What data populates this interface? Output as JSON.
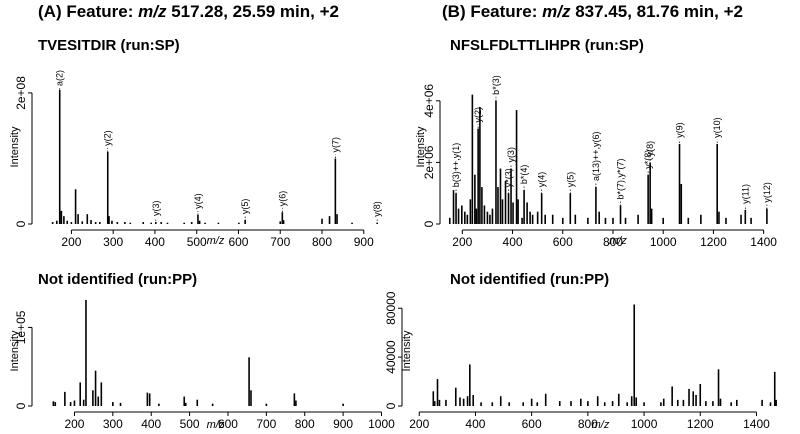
{
  "panels": {
    "A": {
      "title_prefix": "(A) Feature: ",
      "title_mz": "m/z",
      "title_rest": " 517.28, 25.59 min, +2"
    },
    "B": {
      "title_prefix": "(B) Feature: ",
      "title_mz": "m/z",
      "title_rest": " 837.45, 81.76 min, +2"
    }
  },
  "chart_data": [
    {
      "id": "A-SP",
      "type": "bar",
      "title": "TVESITDIR (run:SP)",
      "xlabel": "m/z",
      "ylabel": "Intensity",
      "xlim": [
        120,
        970
      ],
      "ylim": [
        0,
        235000000.0
      ],
      "xticks": [
        200,
        300,
        400,
        500,
        600,
        700,
        800,
        900
      ],
      "yticks": [
        {
          "value": 0,
          "label": "0"
        },
        {
          "value": 200000000.0,
          "label": "2e+08"
        }
      ],
      "peaks": [
        [
          155,
          3000000.0
        ],
        [
          165,
          5000000.0
        ],
        [
          172,
          205000000.0
        ],
        [
          176,
          20000000.0
        ],
        [
          182,
          12000000.0
        ],
        [
          190,
          5000000.0
        ],
        [
          200,
          3000000.0
        ],
        [
          210,
          53000000.0
        ],
        [
          216,
          15000000.0
        ],
        [
          226,
          4000000.0
        ],
        [
          238,
          15000000.0
        ],
        [
          247,
          6000000.0
        ],
        [
          258,
          3000000.0
        ],
        [
          268,
          3000000.0
        ],
        [
          287,
          110000000.0
        ],
        [
          290,
          12000000.0
        ],
        [
          297,
          5000000.0
        ],
        [
          310,
          3000000.0
        ],
        [
          328,
          3000000.0
        ],
        [
          341,
          2000000.0
        ],
        [
          372,
          3000000.0
        ],
        [
          391,
          2000000.0
        ],
        [
          402,
          3000000.0
        ],
        [
          415,
          3000000.0
        ],
        [
          430,
          2000000.0
        ],
        [
          470,
          2000000.0
        ],
        [
          488,
          3000000.0
        ],
        [
          503,
          14000000.0
        ],
        [
          507,
          5000000.0
        ],
        [
          520,
          2000000.0
        ],
        [
          552,
          2000000.0
        ],
        [
          601,
          2000000.0
        ],
        [
          616,
          6000000.0
        ],
        [
          700,
          4000000.0
        ],
        [
          705,
          18000000.0
        ],
        [
          708,
          6000000.0
        ],
        [
          800,
          8000000.0
        ],
        [
          818,
          12000000.0
        ],
        [
          832,
          100000000.0
        ],
        [
          836,
          15000000.0
        ],
        [
          872,
          2000000.0
        ],
        [
          932,
          2000000.0
        ]
      ],
      "annotations": [
        {
          "label": "a(2)",
          "x": 172
        },
        {
          "label": "y(2)",
          "x": 287
        },
        {
          "label": "y(3)",
          "x": 402
        },
        {
          "label": "y(4)",
          "x": 503
        },
        {
          "label": "y(5)",
          "x": 616
        },
        {
          "label": "y(6)",
          "x": 705
        },
        {
          "label": "y(7)",
          "x": 832
        },
        {
          "label": "y(8)",
          "x": 932
        }
      ]
    },
    {
      "id": "B-SP",
      "type": "bar",
      "title": "NFSLFDLTTLIHPR (run:SP)",
      "xlabel": "m/z",
      "ylabel": "Intensity",
      "xlim": [
        135,
        1505
      ],
      "ylim": [
        0,
        5000000.0
      ],
      "xticks": [
        200,
        400,
        600,
        800,
        1000,
        1200,
        1400
      ],
      "yticks": [
        {
          "value": 0,
          "label": "0"
        },
        {
          "value": 2000000.0,
          "label": "2e+06"
        },
        {
          "value": 4000000.0,
          "label": "4e+06"
        }
      ],
      "peaks": [
        [
          150,
          200000.0
        ],
        [
          165,
          1100000.0
        ],
        [
          175,
          1000000.0
        ],
        [
          185,
          500000.0
        ],
        [
          198,
          600000.0
        ],
        [
          210,
          400000.0
        ],
        [
          220,
          300000.0
        ],
        [
          232,
          800000.0
        ],
        [
          240,
          4200000.0
        ],
        [
          250,
          1600000.0
        ],
        [
          256,
          500000.0
        ],
        [
          263,
          3100000.0
        ],
        [
          270,
          3800000.0
        ],
        [
          278,
          1200000.0
        ],
        [
          288,
          600000.0
        ],
        [
          300,
          400000.0
        ],
        [
          310,
          300000.0
        ],
        [
          320,
          500000.0
        ],
        [
          334,
          4000000.0
        ],
        [
          342,
          1200000.0
        ],
        [
          352,
          1800000.0
        ],
        [
          360,
          800000.0
        ],
        [
          372,
          1400000.0
        ],
        [
          384,
          1000000.0
        ],
        [
          394,
          1800000.0
        ],
        [
          402,
          700000.0
        ],
        [
          416,
          3700000.0
        ],
        [
          422,
          800000.0
        ],
        [
          438,
          200000.0
        ],
        [
          446,
          1100000.0
        ],
        [
          458,
          700000.0
        ],
        [
          470,
          400000.0
        ],
        [
          480,
          300000.0
        ],
        [
          500,
          400000.0
        ],
        [
          516,
          1000000.0
        ],
        [
          530,
          300000.0
        ],
        [
          560,
          300000.0
        ],
        [
          600,
          200000.0
        ],
        [
          630,
          1000000.0
        ],
        [
          650,
          300000.0
        ],
        [
          700,
          200000.0
        ],
        [
          732,
          1200000.0
        ],
        [
          745,
          400000.0
        ],
        [
          770,
          200000.0
        ],
        [
          800,
          200000.0
        ],
        [
          830,
          600000.0
        ],
        [
          850,
          200000.0
        ],
        [
          900,
          300000.0
        ],
        [
          940,
          1600000.0
        ],
        [
          948,
          2000000.0
        ],
        [
          954,
          500000.0
        ],
        [
          1000,
          200000.0
        ],
        [
          1065,
          2600000.0
        ],
        [
          1072,
          1300000.0
        ],
        [
          1100,
          200000.0
        ],
        [
          1150,
          300000.0
        ],
        [
          1215,
          2600000.0
        ],
        [
          1222,
          400000.0
        ],
        [
          1250,
          200000.0
        ],
        [
          1310,
          300000.0
        ],
        [
          1327,
          460000.0
        ],
        [
          1350,
          200000.0
        ],
        [
          1413,
          500000.0
        ]
      ],
      "annotations": [
        {
          "label": "b(3)++,y(1)",
          "x": 175
        },
        {
          "label": "y(2)",
          "x": 263
        },
        {
          "label": "b*(3)",
          "x": 334
        },
        {
          "label": "y*(3)",
          "x": 384
        },
        {
          "label": "y(3)",
          "x": 394
        },
        {
          "label": "b*(4)",
          "x": 446
        },
        {
          "label": "y(4)",
          "x": 516
        },
        {
          "label": "y(5)",
          "x": 630
        },
        {
          "label": "a(13)++,y(6)",
          "x": 732
        },
        {
          "label": "b*(7),y*(7)",
          "x": 830
        },
        {
          "label": "y*(8)",
          "x": 940
        },
        {
          "label": "y(8)",
          "x": 948
        },
        {
          "label": "y(9)",
          "x": 1065
        },
        {
          "label": "y(10)",
          "x": 1215
        },
        {
          "label": "y(11)",
          "x": 1327
        },
        {
          "label": "y(12)",
          "x": 1413
        }
      ]
    },
    {
      "id": "A-PP",
      "type": "bar",
      "title": "Not identified (run:PP)",
      "xlabel": "m/z",
      "ylabel": "Intensity",
      "xlim": [
        105,
        1030
      ],
      "ylim": [
        0,
        140000.0
      ],
      "xticks": [
        200,
        300,
        400,
        500,
        600,
        700,
        800,
        900,
        1000
      ],
      "yticks": [
        {
          "value": 0,
          "label": "0"
        },
        {
          "value": 100000.0,
          "label": "1e+05"
        }
      ],
      "peaks": [
        [
          145,
          6000.0
        ],
        [
          150,
          5000.0
        ],
        [
          175,
          18000.0
        ],
        [
          190,
          5000.0
        ],
        [
          200,
          7000.0
        ],
        [
          215,
          30000.0
        ],
        [
          224,
          8000.0
        ],
        [
          230,
          135000.0
        ],
        [
          248,
          20000.0
        ],
        [
          255,
          45000.0
        ],
        [
          262,
          12000.0
        ],
        [
          270,
          30000.0
        ],
        [
          300,
          5000.0
        ],
        [
          320,
          4000.0
        ],
        [
          390,
          17000.0
        ],
        [
          396,
          16000.0
        ],
        [
          420,
          3000.0
        ],
        [
          486,
          12000.0
        ],
        [
          490,
          4000.0
        ],
        [
          520,
          8000.0
        ],
        [
          560,
          3000.0
        ],
        [
          655,
          62000.0
        ],
        [
          660,
          20000.0
        ],
        [
          700,
          3000.0
        ],
        [
          773,
          16000.0
        ],
        [
          777,
          7000.0
        ],
        [
          900,
          3000.0
        ]
      ]
    },
    {
      "id": "B-PP",
      "type": "bar",
      "title": "Not identified (run:PP)",
      "xlabel": "m/z",
      "ylabel": "Intensity",
      "xlim": [
        160,
        1530
      ],
      "ylim": [
        0,
        90000.0
      ],
      "xticks": [
        200,
        400,
        600,
        800,
        1000,
        1200,
        1400
      ],
      "yticks": [
        {
          "value": 0,
          "label": "0"
        },
        {
          "value": 40000,
          "label": "40000"
        },
        {
          "value": 80000,
          "label": "80000"
        }
      ],
      "peaks": [
        [
          250,
          12000.0
        ],
        [
          255,
          4000.0
        ],
        [
          265,
          22000.0
        ],
        [
          272,
          5000.0
        ],
        [
          295,
          5000.0
        ],
        [
          330,
          15000.0
        ],
        [
          345,
          7000.0
        ],
        [
          358,
          6000.0
        ],
        [
          372,
          8000.0
        ],
        [
          380,
          34000.0
        ],
        [
          392,
          9000.0
        ],
        [
          420,
          3000.0
        ],
        [
          460,
          3000.0
        ],
        [
          490,
          8000.0
        ],
        [
          520,
          3000.0
        ],
        [
          570,
          3000.0
        ],
        [
          600,
          6000.0
        ],
        [
          620,
          3000.0
        ],
        [
          650,
          10000.0
        ],
        [
          700,
          4000.0
        ],
        [
          740,
          4000.0
        ],
        [
          775,
          6000.0
        ],
        [
          800,
          4000.0
        ],
        [
          835,
          8000.0
        ],
        [
          860,
          3000.0
        ],
        [
          888,
          4000.0
        ],
        [
          910,
          10000.0
        ],
        [
          940,
          3000.0
        ],
        [
          956,
          8000.0
        ],
        [
          965,
          83000.0
        ],
        [
          972,
          7000.0
        ],
        [
          1000,
          3000.0
        ],
        [
          1060,
          3000.0
        ],
        [
          1070,
          6000.0
        ],
        [
          1100,
          16000.0
        ],
        [
          1120,
          5000.0
        ],
        [
          1140,
          5000.0
        ],
        [
          1160,
          14000.0
        ],
        [
          1175,
          12000.0
        ],
        [
          1185,
          9000.0
        ],
        [
          1200,
          18000.0
        ],
        [
          1220,
          4000.0
        ],
        [
          1245,
          4000.0
        ],
        [
          1265,
          30000.0
        ],
        [
          1272,
          6000.0
        ],
        [
          1310,
          3000.0
        ],
        [
          1330,
          5000.0
        ],
        [
          1420,
          5000.0
        ],
        [
          1450,
          3000.0
        ],
        [
          1465,
          28000.0
        ],
        [
          1470,
          5000.0
        ]
      ]
    }
  ]
}
